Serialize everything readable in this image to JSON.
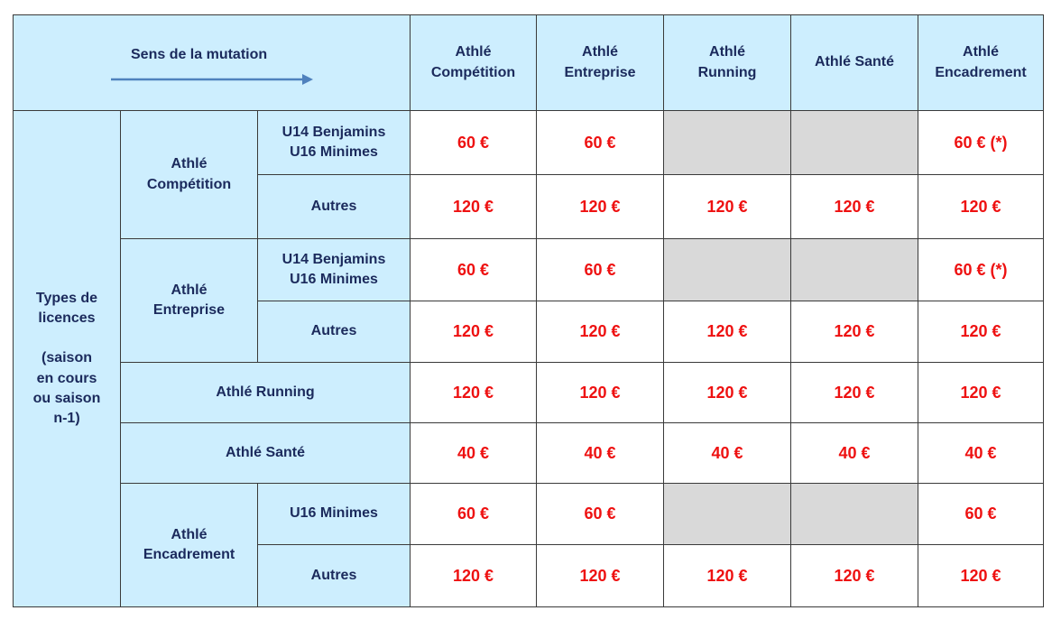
{
  "header": {
    "direction_label": "Sens de la mutation",
    "columns": [
      "Athlé\nCompétition",
      "Athlé\nEntreprise",
      "Athlé\nRunning",
      "Athlé Santé",
      "Athlé\nEncadrement"
    ]
  },
  "side_label": "Types de\nlicences\n\n(saison\nen cours\nou saison\nn-1)",
  "groups": {
    "competition": {
      "label": "Athlé\nCompétition",
      "rows": [
        {
          "sub": "U14 Benjamins\nU16 Minimes",
          "cells": [
            "60 €",
            "60 €",
            "",
            "",
            "60 € (*)"
          ]
        },
        {
          "sub": "Autres",
          "cells": [
            "120 €",
            "120 €",
            "120 €",
            "120 €",
            "120 €"
          ]
        }
      ]
    },
    "entreprise": {
      "label": "Athlé\nEntreprise",
      "rows": [
        {
          "sub": "U14 Benjamins\nU16 Minimes",
          "cells": [
            "60 €",
            "60 €",
            "",
            "",
            "60 € (*)"
          ]
        },
        {
          "sub": "Autres",
          "cells": [
            "120 €",
            "120 €",
            "120 €",
            "120 €",
            "120 €"
          ]
        }
      ]
    },
    "running": {
      "label": "Athlé Running",
      "cells": [
        "120 €",
        "120 €",
        "120 €",
        "120 €",
        "120 €"
      ]
    },
    "sante": {
      "label": "Athlé Santé",
      "cells": [
        "40 €",
        "40 €",
        "40 €",
        "40 €",
        "40 €"
      ]
    },
    "encadrement": {
      "label": "Athlé\nEncadrement",
      "rows": [
        {
          "sub": "U16 Minimes",
          "cells": [
            "60 €",
            "60 €",
            "",
            "",
            "60 €"
          ]
        },
        {
          "sub": "Autres",
          "cells": [
            "120 €",
            "120 €",
            "120 €",
            "120 €",
            "120 €"
          ]
        }
      ]
    }
  },
  "colors": {
    "header_bg": "#cdeefe",
    "label_text": "#1b2a5c",
    "price_text": "#ee1111",
    "unavailable_bg": "#d9d9d9",
    "arrow": "#4f81bd"
  },
  "icons": {
    "direction_arrow": "arrow-right-icon"
  }
}
